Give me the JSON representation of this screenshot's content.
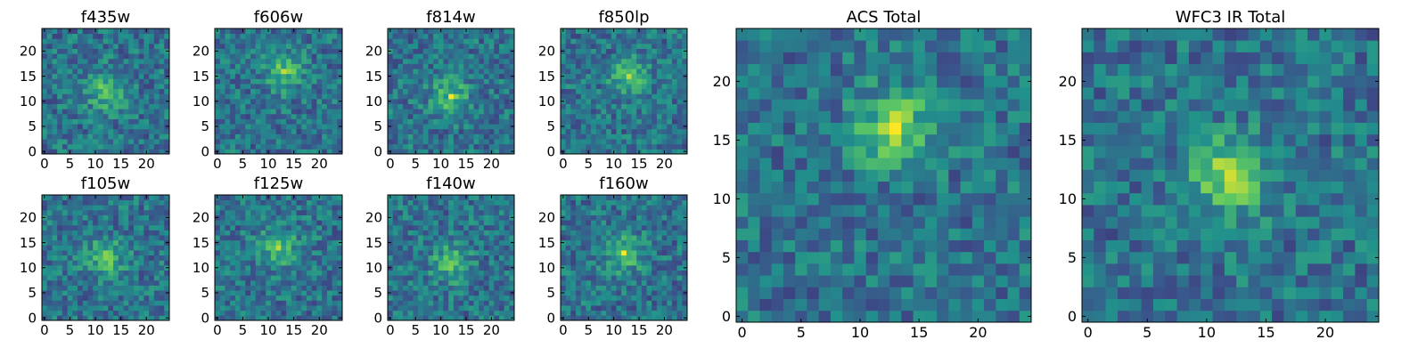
{
  "figure": {
    "colormap": "viridis",
    "colormap_stops": [
      "#440154",
      "#3b528b",
      "#21918c",
      "#5ec962",
      "#fde725"
    ]
  },
  "chart_data": [
    {
      "type": "heatmap",
      "title": "f435w",
      "xlim": [
        0,
        24
      ],
      "ylim": [
        0,
        24
      ],
      "xticks": [
        "0",
        "5",
        "10",
        "15",
        "20"
      ],
      "yticks": [
        "0",
        "5",
        "10",
        "15",
        "20"
      ],
      "peak": {
        "x": 12,
        "y": 12
      },
      "grid": false,
      "colorbar": false
    },
    {
      "type": "heatmap",
      "title": "f606w",
      "xlim": [
        0,
        24
      ],
      "ylim": [
        0,
        24
      ],
      "xticks": [
        "0",
        "5",
        "10",
        "15",
        "20"
      ],
      "yticks": [
        "0",
        "5",
        "10",
        "15",
        "20"
      ],
      "peak": {
        "x": 13,
        "y": 16
      },
      "grid": false,
      "colorbar": false
    },
    {
      "type": "heatmap",
      "title": "f814w",
      "xlim": [
        0,
        24
      ],
      "ylim": [
        0,
        24
      ],
      "xticks": [
        "0",
        "5",
        "10",
        "15",
        "20"
      ],
      "yticks": [
        "0",
        "5",
        "10",
        "15",
        "20"
      ],
      "peak": {
        "x": 12,
        "y": 11
      },
      "grid": false,
      "colorbar": false
    },
    {
      "type": "heatmap",
      "title": "f850lp",
      "xlim": [
        0,
        24
      ],
      "ylim": [
        0,
        24
      ],
      "xticks": [
        "0",
        "5",
        "10",
        "15",
        "20"
      ],
      "yticks": [
        "0",
        "5",
        "10",
        "15",
        "20"
      ],
      "peak": {
        "x": 13,
        "y": 15
      },
      "grid": false,
      "colorbar": false
    },
    {
      "type": "heatmap",
      "title": "f105w",
      "xlim": [
        0,
        24
      ],
      "ylim": [
        0,
        24
      ],
      "xticks": [
        "0",
        "5",
        "10",
        "15",
        "20"
      ],
      "yticks": [
        "0",
        "5",
        "10",
        "15",
        "20"
      ],
      "peak": {
        "x": 12,
        "y": 12
      },
      "grid": false,
      "colorbar": false
    },
    {
      "type": "heatmap",
      "title": "f125w",
      "xlim": [
        0,
        24
      ],
      "ylim": [
        0,
        24
      ],
      "xticks": [
        "0",
        "5",
        "10",
        "15",
        "20"
      ],
      "yticks": [
        "0",
        "5",
        "10",
        "15",
        "20"
      ],
      "peak": {
        "x": 12,
        "y": 14
      },
      "grid": false,
      "colorbar": false
    },
    {
      "type": "heatmap",
      "title": "f140w",
      "xlim": [
        0,
        24
      ],
      "ylim": [
        0,
        24
      ],
      "xticks": [
        "0",
        "5",
        "10",
        "15",
        "20"
      ],
      "yticks": [
        "0",
        "5",
        "10",
        "15",
        "20"
      ],
      "peak": {
        "x": 12,
        "y": 11
      },
      "grid": false,
      "colorbar": false
    },
    {
      "type": "heatmap",
      "title": "f160w",
      "xlim": [
        0,
        24
      ],
      "ylim": [
        0,
        24
      ],
      "xticks": [
        "0",
        "5",
        "10",
        "15",
        "20"
      ],
      "yticks": [
        "0",
        "5",
        "10",
        "15",
        "20"
      ],
      "peak": {
        "x": 12,
        "y": 13
      },
      "grid": false,
      "colorbar": false
    },
    {
      "type": "heatmap",
      "title": "ACS Total",
      "xlim": [
        0,
        24
      ],
      "ylim": [
        0,
        24
      ],
      "xticks": [
        "0",
        "5",
        "10",
        "15",
        "20"
      ],
      "yticks": [
        "0",
        "5",
        "10",
        "15",
        "20"
      ],
      "peak": {
        "x": 13,
        "y": 16
      },
      "grid": false,
      "colorbar": false
    },
    {
      "type": "heatmap",
      "title": "WFC3 IR Total",
      "xlim": [
        0,
        24
      ],
      "ylim": [
        0,
        24
      ],
      "xticks": [
        "0",
        "5",
        "10",
        "15",
        "20"
      ],
      "yticks": [
        "0",
        "5",
        "10",
        "15",
        "20"
      ],
      "peak": {
        "x": 12,
        "y": 12
      },
      "grid": false,
      "colorbar": false
    }
  ]
}
